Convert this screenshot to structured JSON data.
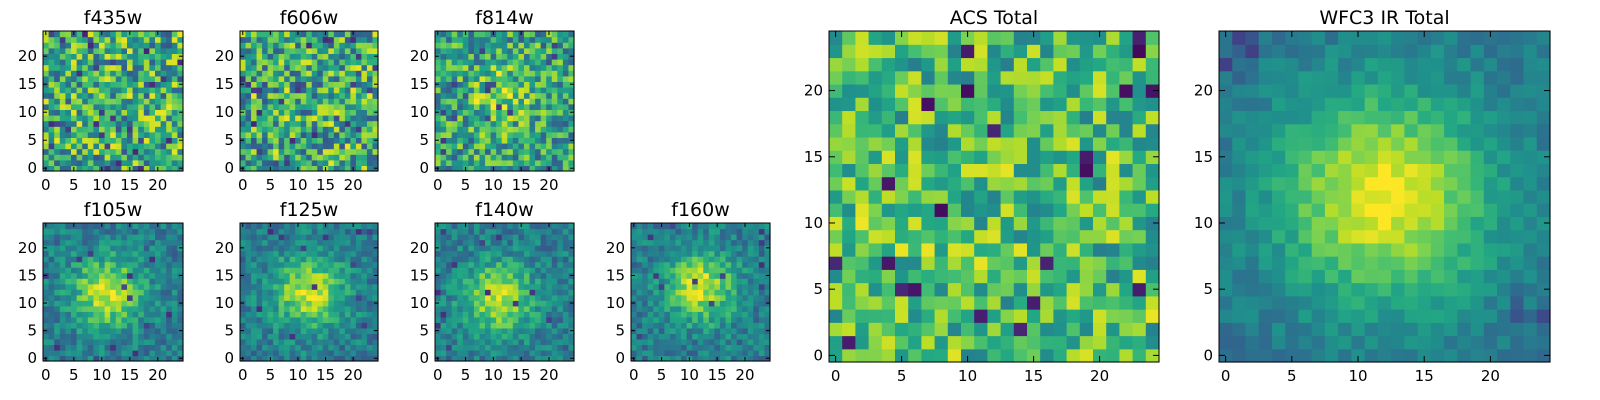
{
  "chart_data": {
    "type": "heatmap",
    "colormap": "viridis",
    "grid": false,
    "panels": [
      {
        "id": "f435w",
        "title": "f435w",
        "size": 25,
        "xlim": [
          -0.5,
          24.5
        ],
        "ylim": [
          -0.5,
          24.5
        ],
        "xticks": [
          0,
          5,
          10,
          15,
          20
        ],
        "yticks": [
          0,
          5,
          10,
          15,
          20
        ],
        "pattern": "noise",
        "center": [
          12,
          12
        ],
        "seed": 11
      },
      {
        "id": "f606w",
        "title": "f606w",
        "size": 25,
        "xlim": [
          -0.5,
          24.5
        ],
        "ylim": [
          -0.5,
          24.5
        ],
        "xticks": [
          0,
          5,
          10,
          15,
          20
        ],
        "yticks": [
          0,
          5,
          10,
          15,
          20
        ],
        "pattern": "noise",
        "center": [
          12,
          12
        ],
        "seed": 23
      },
      {
        "id": "f814w",
        "title": "f814w",
        "size": 25,
        "xlim": [
          -0.5,
          24.5
        ],
        "ylim": [
          -0.5,
          24.5
        ],
        "xticks": [
          0,
          5,
          10,
          15,
          20
        ],
        "yticks": [
          0,
          5,
          10,
          15,
          20
        ],
        "pattern": "weak-source",
        "center": [
          11,
          13
        ],
        "seed": 37
      },
      {
        "id": "f105w",
        "title": "f105w",
        "size": 25,
        "xlim": [
          -0.5,
          24.5
        ],
        "ylim": [
          -0.5,
          24.5
        ],
        "xticks": [
          0,
          5,
          10,
          15,
          20
        ],
        "yticks": [
          0,
          5,
          10,
          15,
          20
        ],
        "pattern": "source",
        "center": [
          11,
          12
        ],
        "seed": 41
      },
      {
        "id": "f125w",
        "title": "f125w",
        "size": 25,
        "xlim": [
          -0.5,
          24.5
        ],
        "ylim": [
          -0.5,
          24.5
        ],
        "xticks": [
          0,
          5,
          10,
          15,
          20
        ],
        "yticks": [
          0,
          5,
          10,
          15,
          20
        ],
        "pattern": "source",
        "center": [
          12,
          12
        ],
        "seed": 53
      },
      {
        "id": "f140w",
        "title": "f140w",
        "size": 25,
        "xlim": [
          -0.5,
          24.5
        ],
        "ylim": [
          -0.5,
          24.5
        ],
        "xticks": [
          0,
          5,
          10,
          15,
          20
        ],
        "yticks": [
          0,
          5,
          10,
          15,
          20
        ],
        "pattern": "source",
        "center": [
          11,
          11
        ],
        "seed": 61
      },
      {
        "id": "f160w",
        "title": "f160w",
        "size": 25,
        "xlim": [
          -0.5,
          24.5
        ],
        "ylim": [
          -0.5,
          24.5
        ],
        "xticks": [
          0,
          5,
          10,
          15,
          20
        ],
        "yticks": [
          0,
          5,
          10,
          15,
          20
        ],
        "pattern": "source",
        "center": [
          12,
          13
        ],
        "seed": 73
      },
      {
        "id": "acs-total",
        "title": "ACS Total",
        "size": 25,
        "xlim": [
          -0.5,
          24.5
        ],
        "ylim": [
          -0.5,
          24.5
        ],
        "xticks": [
          0,
          5,
          10,
          15,
          20
        ],
        "yticks": [
          0,
          5,
          10,
          15,
          20
        ],
        "pattern": "noise-bright",
        "center": [
          12,
          12
        ],
        "seed": 89
      },
      {
        "id": "wfc3-ir-total",
        "title": "WFC3 IR Total",
        "size": 25,
        "xlim": [
          -0.5,
          24.5
        ],
        "ylim": [
          -0.5,
          24.5
        ],
        "xticks": [
          0,
          5,
          10,
          15,
          20
        ],
        "yticks": [
          0,
          5,
          10,
          15,
          20
        ],
        "pattern": "smooth-source",
        "center": [
          12,
          12
        ],
        "seed": 97
      }
    ]
  }
}
